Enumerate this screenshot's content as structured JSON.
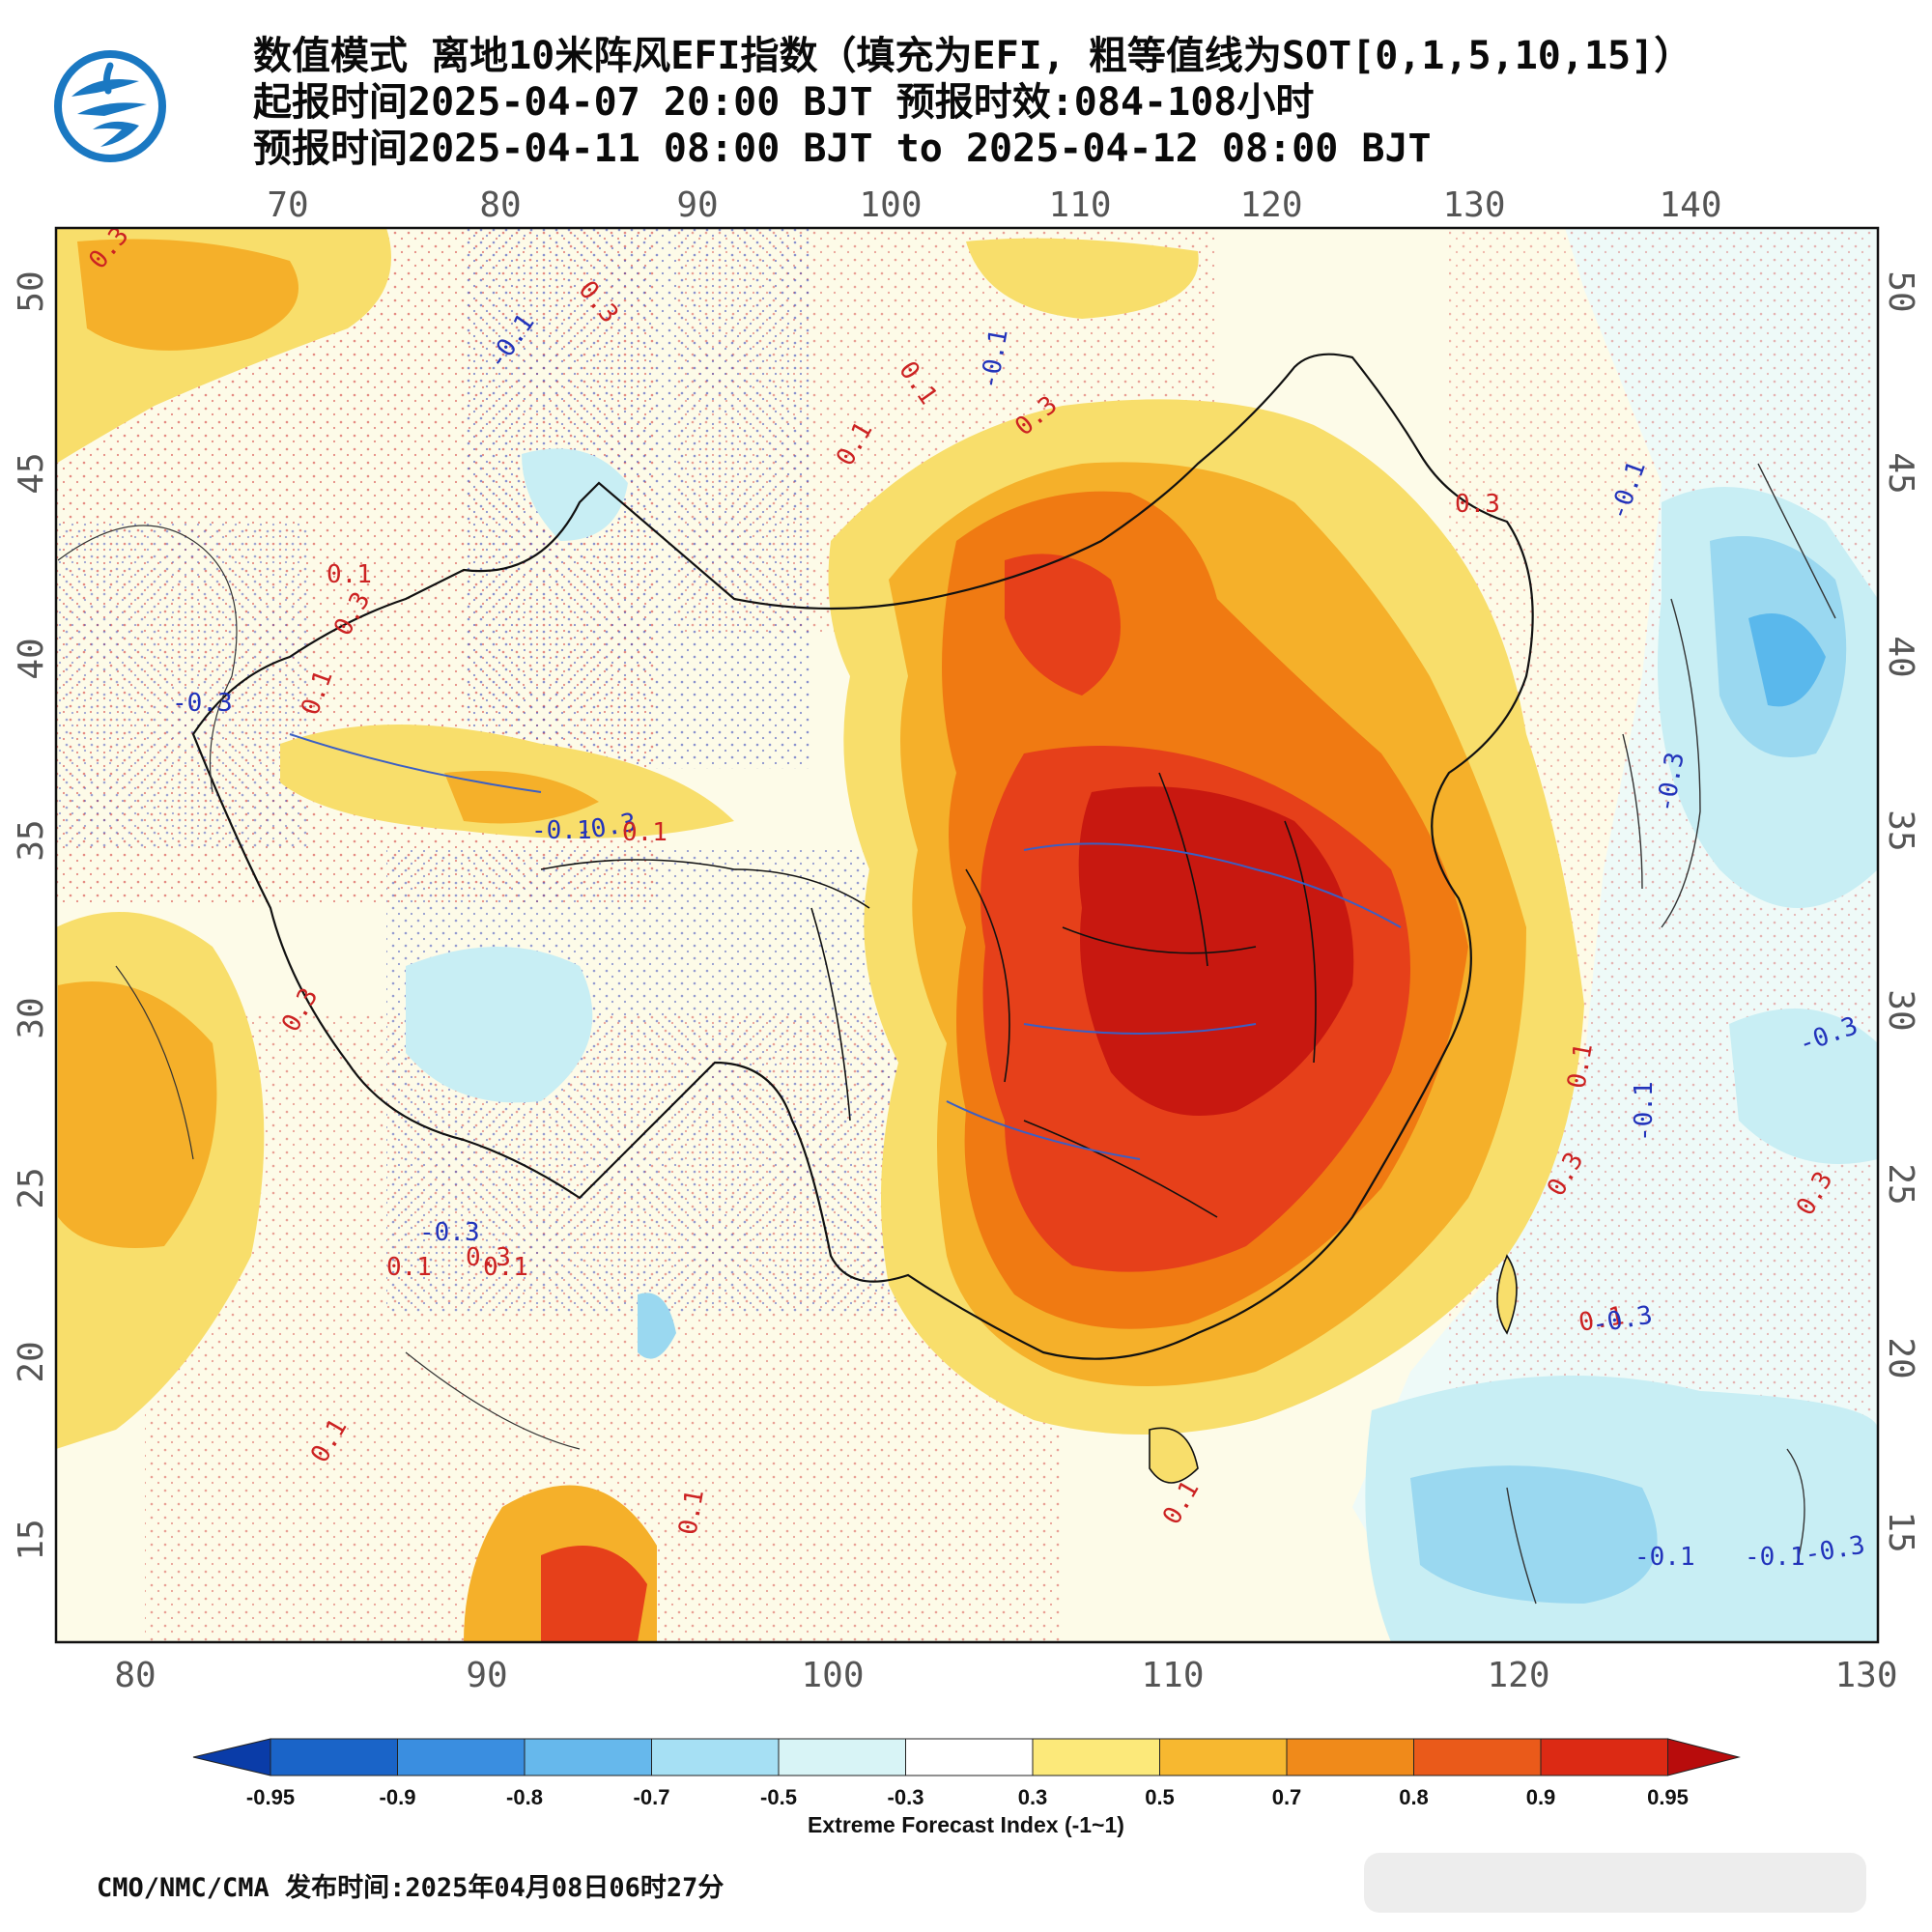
{
  "title": {
    "line1": "数值模式 离地10米阵风EFI指数（填充为EFI, 粗等值线为SOT[0,1,5,10,15]）",
    "line2": "起报时间2025-04-07 20:00 BJT 预报时效:084-108小时",
    "line3": "预报时间2025-04-11 08:00 BJT to 2025-04-12 08:00 BJT"
  },
  "map": {
    "top_lon_labels": [
      "70",
      "80",
      "90",
      "100",
      "110",
      "120",
      "130",
      "140"
    ],
    "bottom_lon_labels": [
      "80",
      "90",
      "100",
      "110",
      "120",
      "130"
    ],
    "left_lat_labels": [
      "50",
      "45",
      "40",
      "35",
      "30",
      "25",
      "20",
      "15"
    ],
    "right_lat_labels": [
      "50",
      "45",
      "40",
      "35",
      "30",
      "25",
      "20",
      "15"
    ],
    "contour_labels": [
      {
        "text": "0.3",
        "color": "#cc2222"
      },
      {
        "text": "0.3",
        "color": "#cc2222"
      },
      {
        "text": "-0.1",
        "color": "#2233bb"
      },
      {
        "text": "0.1",
        "color": "#cc2222"
      },
      {
        "text": "-0.1",
        "color": "#2233bb"
      },
      {
        "text": "0.3",
        "color": "#cc2222"
      },
      {
        "text": "0.1",
        "color": "#cc2222"
      },
      {
        "text": "0.3",
        "color": "#cc2222"
      },
      {
        "text": "-0.1",
        "color": "#2233bb"
      },
      {
        "text": "-0.3",
        "color": "#2233bb"
      },
      {
        "text": "-0.3",
        "color": "#2233bb"
      },
      {
        "text": "0.1",
        "color": "#cc2222"
      },
      {
        "text": "0.3",
        "color": "#cc2222"
      },
      {
        "text": "0.1",
        "color": "#cc2222"
      },
      {
        "text": "-0.1",
        "color": "#2233bb"
      },
      {
        "text": "-0.3",
        "color": "#2233bb"
      },
      {
        "text": "0.1",
        "color": "#cc2222"
      },
      {
        "text": "0.3",
        "color": "#cc2222"
      },
      {
        "text": "0.1",
        "color": "#cc2222"
      },
      {
        "text": "-0.3",
        "color": "#2233bb"
      },
      {
        "text": "-0.1",
        "color": "#2233bb"
      },
      {
        "text": "0.3",
        "color": "#cc2222"
      },
      {
        "text": "0.3",
        "color": "#cc2222"
      },
      {
        "text": "0.1",
        "color": "#cc2222"
      },
      {
        "text": "-0.3",
        "color": "#2233bb"
      },
      {
        "text": "-0.1",
        "color": "#2233bb"
      },
      {
        "text": "0.3",
        "color": "#cc2222"
      },
      {
        "text": "0.1",
        "color": "#cc2222"
      },
      {
        "text": "-0.3",
        "color": "#2233bb"
      },
      {
        "text": "-0.1",
        "color": "#2233bb"
      },
      {
        "text": "-0.3",
        "color": "#2233bb"
      },
      {
        "text": "0.1",
        "color": "#cc2222"
      },
      {
        "text": "0.1",
        "color": "#cc2222"
      },
      {
        "text": "0.1",
        "color": "#cc2222"
      },
      {
        "text": "0.1",
        "color": "#cc2222"
      }
    ],
    "colors": {
      "land_pale": "#fdfbe8",
      "sea_pale": "#eefaf8",
      "y03": "#f8de6b",
      "y05": "#f5b02a",
      "o07": "#f07a12",
      "r08": "#e6401a",
      "r09": "#c81810",
      "b03": "#c8eef4",
      "b05": "#9ad8f0",
      "b07": "#5ab8ec"
    }
  },
  "colorbar": {
    "colors": [
      "#0a3ca8",
      "#1a64c8",
      "#3a8ee0",
      "#66b8ec",
      "#a6e0f4",
      "#d8f4f6",
      "#ffffff",
      "#fce97a",
      "#f7b830",
      "#f08a1a",
      "#ea5a1a",
      "#dc2a14",
      "#b80c0c"
    ],
    "tick_labels": [
      "-0.95",
      "-0.9",
      "-0.8",
      "-0.7",
      "-0.5",
      "-0.3",
      "0.3",
      "0.5",
      "0.7",
      "0.8",
      "0.9",
      "0.95"
    ],
    "title": "Extreme Forecast Index (-1~1)"
  },
  "footer": "CMO/NMC/CMA 发布时间:2025年04月08日06时27分"
}
